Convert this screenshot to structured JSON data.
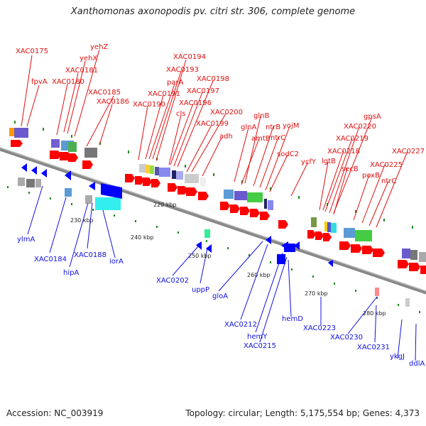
{
  "header": {
    "title": "Xanthomonas axonopodis pv. citri str. 306, complete genome"
  },
  "footer": {
    "accession": "Accession: NC_003919",
    "summary": "Topology: circular; Length: 5,175,554 bp; Genes: 4,373"
  },
  "colors": {
    "forward_label": "#e01010",
    "reverse_label": "#1010e0",
    "forward_gene": "#ff0000",
    "reverse_gene": "#0000ff",
    "backbone": "#888888",
    "tick": "#1a8a1a"
  },
  "scale_ticks": [
    "220 kbp",
    "230 kbp",
    "240 kbp",
    "250 kbp",
    "260 kbp",
    "270 kbp",
    "280 kbp"
  ],
  "forward_labels": [
    "XAC0175",
    "fpvA",
    "yehZ",
    "yehX",
    "XAC0181",
    "XAC0180",
    "XAC0185",
    "XAC0186",
    "XAC0194",
    "XAC0193",
    "parA",
    "XAC0198",
    "XAC0191",
    "XAC0197",
    "XAC0190",
    "cls",
    "XAC0196",
    "XAC0200",
    "XAC0199",
    "adh",
    "glnB",
    "glnA",
    "ntrB",
    "yojM",
    "amtB",
    "ntrC",
    "sodC2",
    "ycfY",
    "lgtB",
    "gpsA",
    "XAC0220",
    "XAC0219",
    "XAC0218",
    "secB",
    "XAC0227",
    "XAC0225",
    "poxB",
    "ntrC"
  ],
  "reverse_labels": [
    "ylmA",
    "XAC0184",
    "XAC0188",
    "hipA",
    "iorA",
    "XAC0202",
    "uppP",
    "gloA",
    "XAC0212",
    "hemY",
    "XAC0215",
    "hemD",
    "XAC0223",
    "XAC0230",
    "XAC0231",
    "ykgJ",
    "ddlA"
  ]
}
